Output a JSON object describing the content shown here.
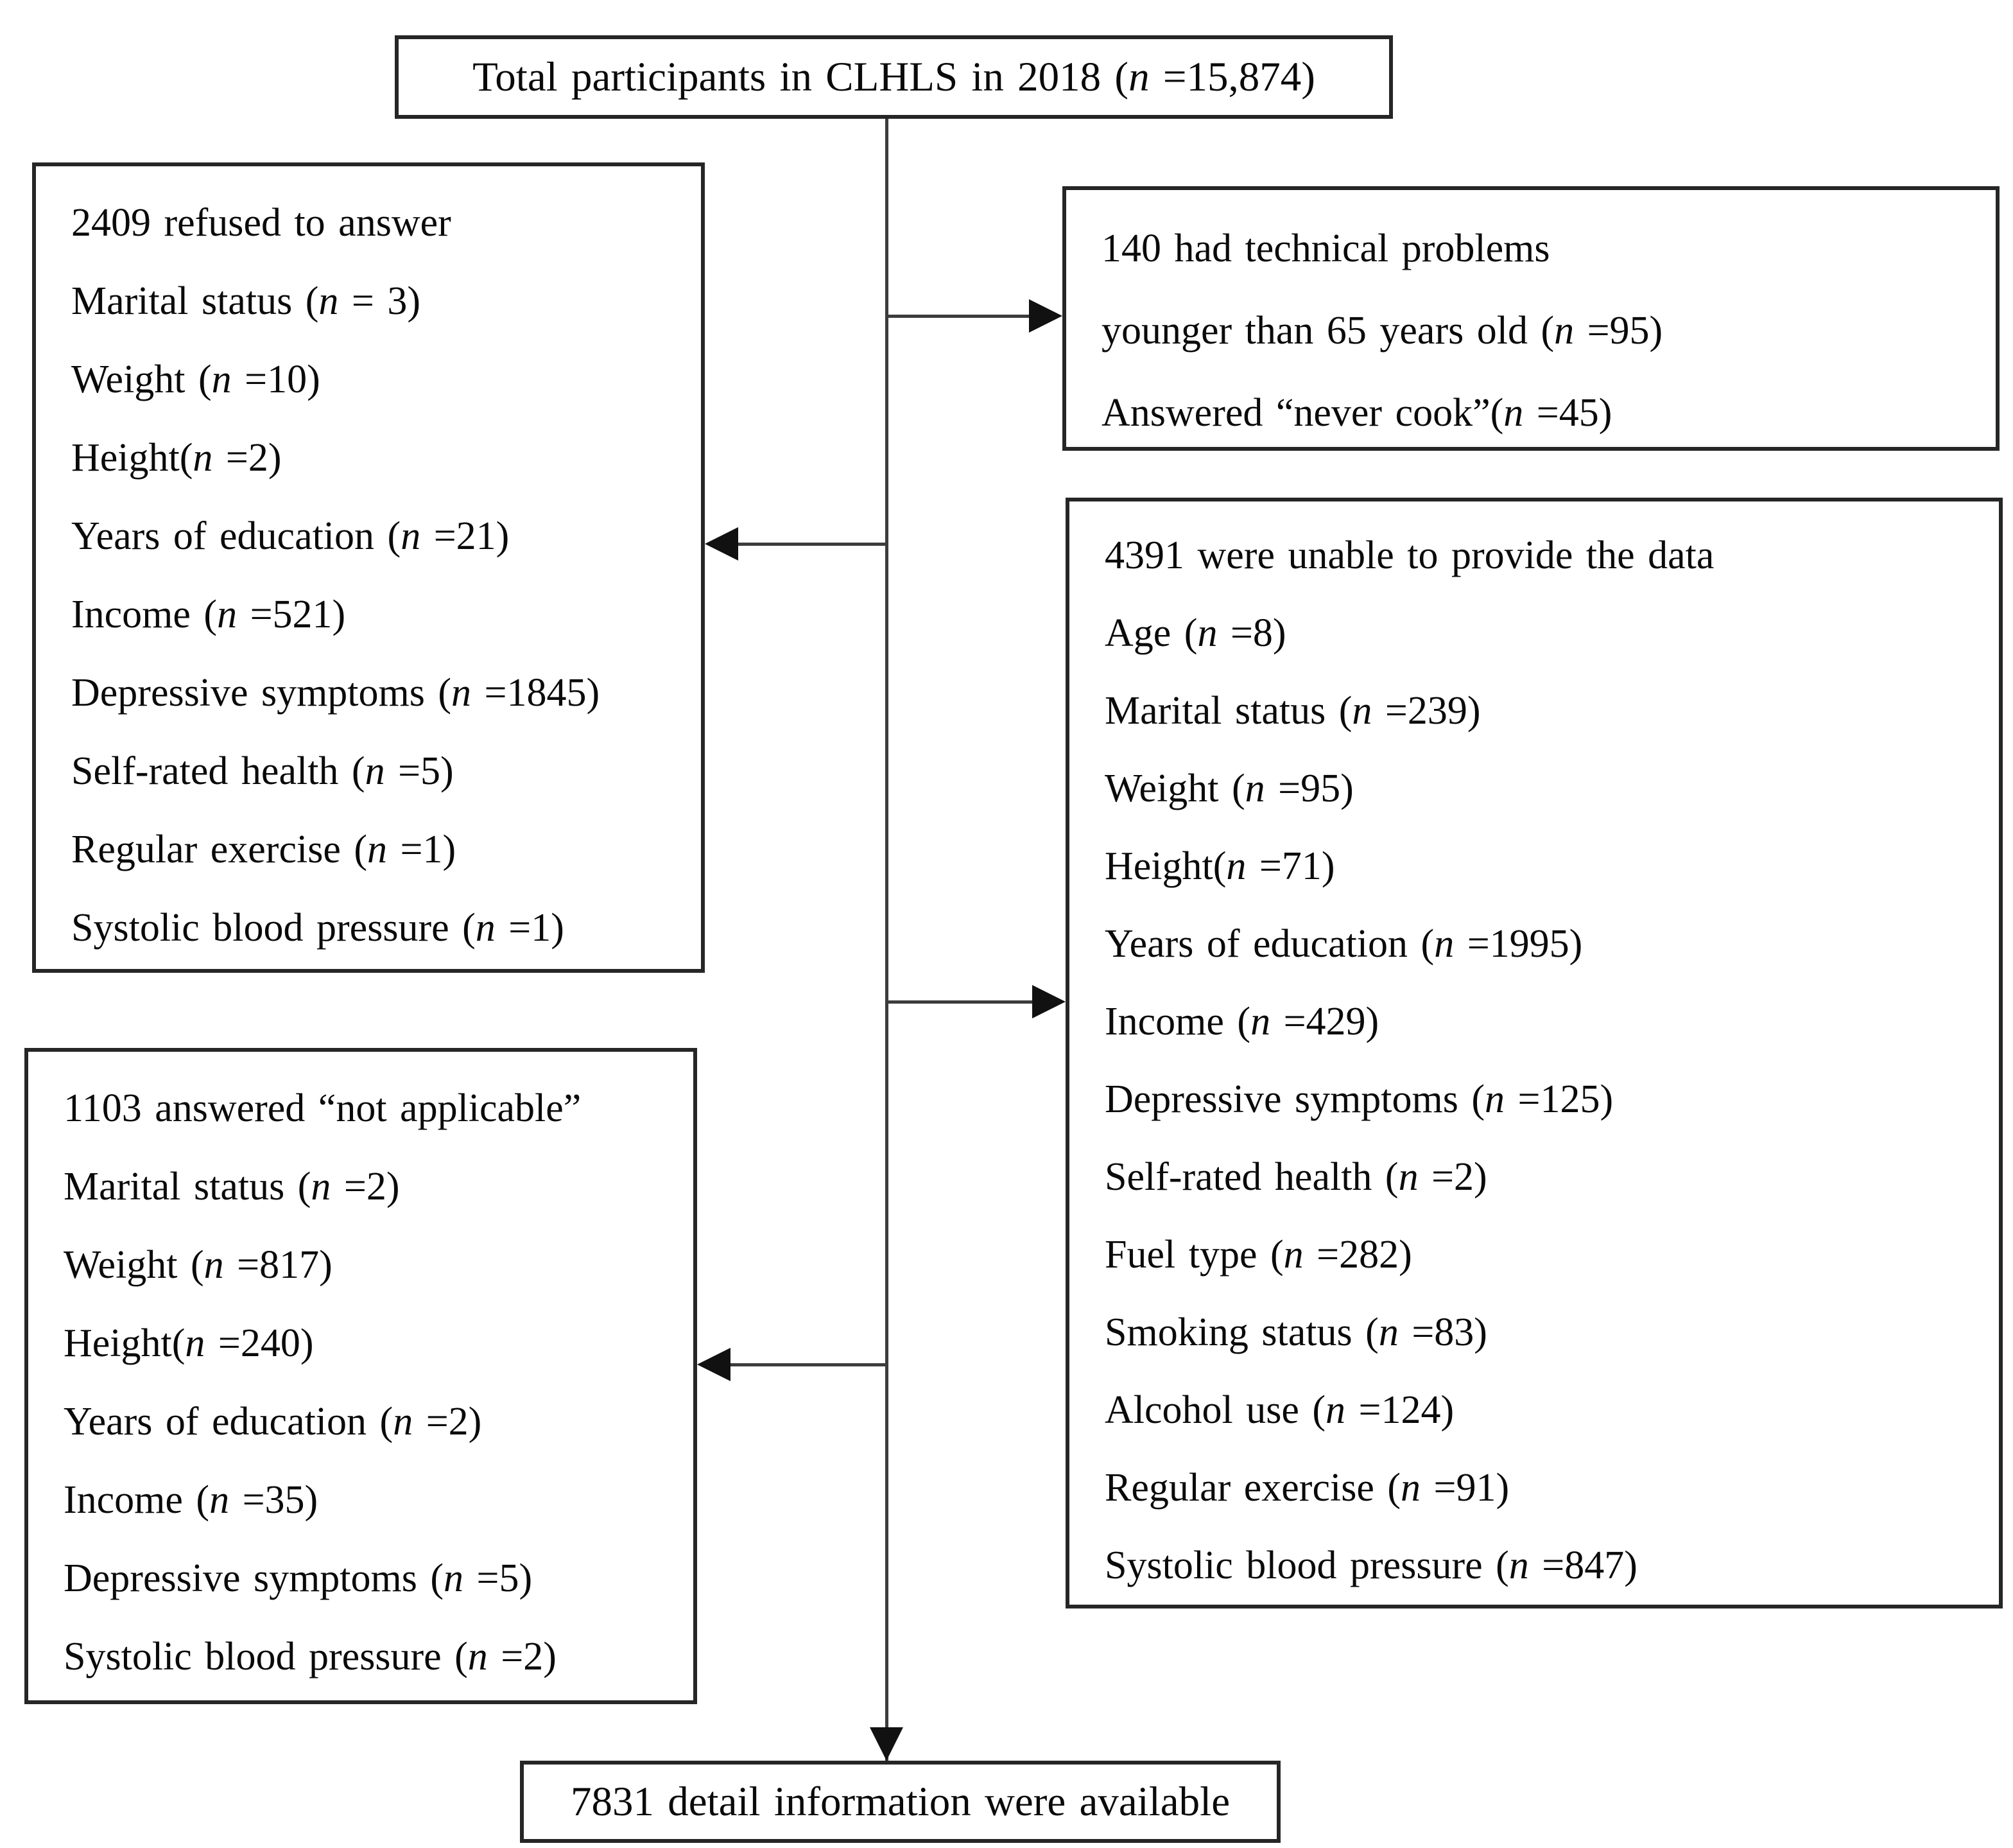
{
  "flowchart": {
    "total_box": {
      "text": "Total participants in CLHLS in 2018 (n =15,874)"
    },
    "refused_box": {
      "lines": [
        "2409 refused to answer",
        "Marital status (n = 3)",
        "Weight (n =10)",
        "Height(n =2)",
        "Years of education (n =21)",
        "Income (n =521)",
        "Depressive symptoms (n =1845)",
        "Self-rated health (n =5)",
        "Regular exercise (n =1)",
        "Systolic blood pressure (n =1)"
      ]
    },
    "technical_box": {
      "lines": [
        "140 had technical problems",
        "younger than 65 years old (n =95)",
        "Answered “never cook”(n =45)"
      ]
    },
    "unable_box": {
      "lines": [
        "4391 were unable to provide the data",
        "Age (n =8)",
        "Marital status (n =239)",
        "Weight (n =95)",
        "Height(n =71)",
        "Years of education (n =1995)",
        "Income (n =429)",
        "Depressive symptoms (n =125)",
        "Self-rated health (n =2)",
        "Fuel type (n =282)",
        "Smoking status (n =83)",
        "Alcohol use (n =124)",
        "Regular exercise (n =91)",
        "Systolic blood pressure (n =847)"
      ]
    },
    "not_applicable_box": {
      "lines": [
        "1103 answered “not applicable”",
        "Marital status (n =2)",
        "Weight (n =817)",
        "Height(n =240)",
        "Years of education (n =2)",
        "Income (n =35)",
        "Depressive symptoms (n =5)",
        "Systolic blood pressure (n =2)"
      ]
    },
    "final_box": {
      "text": "7831 detail information were available"
    }
  }
}
